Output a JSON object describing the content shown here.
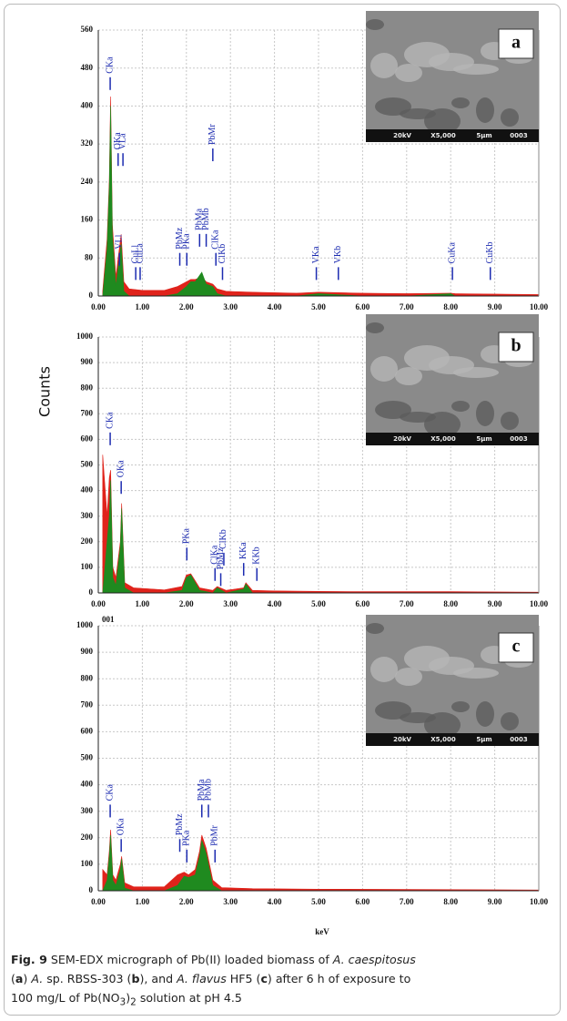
{
  "figure": {
    "y_label": "Counts",
    "x_label": "keV"
  },
  "chart_data": [
    {
      "type": "area",
      "panel_label": "a",
      "x": [
        0.1,
        0.2,
        0.25,
        0.28,
        0.32,
        0.4,
        0.45,
        0.52,
        0.58,
        0.7,
        1.0,
        1.5,
        1.8,
        2.0,
        2.1,
        2.2,
        2.35,
        2.45,
        2.6,
        2.7,
        2.9,
        3.5,
        4.5,
        5.0,
        6,
        7,
        8,
        8.1,
        9,
        10
      ],
      "series": [
        {
          "color": "#e0231b",
          "values": [
            10,
            120,
            245,
            420,
            150,
            40,
            80,
            130,
            30,
            15,
            12,
            12,
            20,
            30,
            35,
            35,
            40,
            30,
            25,
            15,
            10,
            8,
            6,
            8,
            6,
            5,
            6,
            5,
            4,
            3
          ]
        },
        {
          "color": "#1f8a1f",
          "values": [
            0,
            100,
            230,
            400,
            130,
            20,
            60,
            110,
            10,
            0,
            0,
            0,
            5,
            20,
            30,
            30,
            50,
            25,
            20,
            5,
            0,
            0,
            0,
            5,
            0,
            0,
            5,
            0,
            0,
            0
          ]
        }
      ],
      "xlim": [
        0,
        10
      ],
      "xticks": [
        {
          "value": 0,
          "label": "0.00"
        },
        {
          "value": 1,
          "label": "1.00"
        },
        {
          "value": 2,
          "label": "2.00"
        },
        {
          "value": 3,
          "label": "3.00"
        },
        {
          "value": 4,
          "label": "4.00"
        },
        {
          "value": 5,
          "label": "5.00"
        },
        {
          "value": 6,
          "label": "6.00"
        },
        {
          "value": 7,
          "label": "7.00"
        },
        {
          "value": 8,
          "label": "8.00"
        },
        {
          "value": 9,
          "label": "9.00"
        },
        {
          "value": 10,
          "label": "10.00"
        }
      ],
      "ylim": [
        0,
        560
      ],
      "yticks": [
        0,
        80,
        160,
        240,
        320,
        400,
        480,
        560
      ],
      "grid": true,
      "annotations": [
        {
          "label": "CKa",
          "x": 0.27,
          "y": 430
        },
        {
          "label": "OKa",
          "x": 0.45,
          "y": 270
        },
        {
          "label": "VLa",
          "x": 0.56,
          "y": 270
        },
        {
          "label": "VLl",
          "x": 0.48,
          "y": 60
        },
        {
          "label": "CuLl",
          "x": 0.85,
          "y": 30
        },
        {
          "label": "CuLa",
          "x": 0.95,
          "y": 30
        },
        {
          "label": "PbMz",
          "x": 1.85,
          "y": 60
        },
        {
          "label": "PKa",
          "x": 2.01,
          "y": 60
        },
        {
          "label": "PbMa",
          "x": 2.3,
          "y": 100
        },
        {
          "label": "PbMb",
          "x": 2.45,
          "y": 100
        },
        {
          "label": "PbMr",
          "x": 2.6,
          "y": 280
        },
        {
          "label": "ClKa",
          "x": 2.67,
          "y": 60
        },
        {
          "label": "ClKb",
          "x": 2.82,
          "y": 30
        },
        {
          "label": "VKa",
          "x": 4.95,
          "y": 30
        },
        {
          "label": "VKb",
          "x": 5.45,
          "y": 30
        },
        {
          "label": "CuKa",
          "x": 8.04,
          "y": 30
        },
        {
          "label": "CuKb",
          "x": 8.9,
          "y": 30
        }
      ],
      "inset": [
        "20kV",
        "X5,000",
        "5µm",
        "0003"
      ]
    },
    {
      "type": "area",
      "panel_label": "b",
      "x": [
        0.1,
        0.2,
        0.25,
        0.28,
        0.33,
        0.4,
        0.5,
        0.53,
        0.6,
        0.8,
        1.5,
        1.9,
        2.0,
        2.1,
        2.3,
        2.6,
        2.7,
        2.9,
        3.3,
        3.35,
        3.5,
        4,
        5,
        6,
        7,
        8,
        9,
        10
      ],
      "series": [
        {
          "color": "#e0231b",
          "values": [
            540,
            300,
            450,
            480,
            100,
            60,
            200,
            350,
            40,
            20,
            12,
            25,
            70,
            75,
            20,
            10,
            25,
            10,
            20,
            40,
            10,
            8,
            6,
            5,
            5,
            5,
            4,
            3
          ]
        },
        {
          "color": "#1f8a1f",
          "values": [
            0,
            200,
            300,
            440,
            60,
            30,
            180,
            330,
            20,
            0,
            0,
            10,
            60,
            70,
            10,
            0,
            20,
            0,
            15,
            35,
            0,
            0,
            0,
            0,
            0,
            0,
            0,
            0
          ]
        }
      ],
      "xlim": [
        0,
        10
      ],
      "xticks": [
        {
          "value": 0,
          "label": "0.00"
        },
        {
          "value": 1,
          "label": "1.00"
        },
        {
          "value": 2,
          "label": "2.00"
        },
        {
          "value": 3,
          "label": "3.00"
        },
        {
          "value": 4,
          "label": "4.00"
        },
        {
          "value": 5,
          "label": "5.00"
        },
        {
          "value": 6,
          "label": "6.00"
        },
        {
          "value": 7,
          "label": "7.00"
        },
        {
          "value": 8,
          "label": "8.00"
        },
        {
          "value": 9,
          "label": "9.00"
        },
        {
          "value": 10,
          "label": "10.00"
        }
      ],
      "ylim": [
        0,
        1000
      ],
      "yticks": [
        0,
        100,
        200,
        300,
        400,
        500,
        600,
        700,
        800,
        900,
        1000
      ],
      "grid": true,
      "annotations": [
        {
          "label": "CKa",
          "x": 0.27,
          "y": 570
        },
        {
          "label": "OKa",
          "x": 0.52,
          "y": 380
        },
        {
          "label": "PKa",
          "x": 2.01,
          "y": 120
        },
        {
          "label": "ClKa",
          "x": 2.65,
          "y": 40
        },
        {
          "label": "PbMz",
          "x": 2.78,
          "y": 20
        },
        {
          "label": "ClKb",
          "x": 2.85,
          "y": 100
        },
        {
          "label": "KKa",
          "x": 3.3,
          "y": 60
        },
        {
          "label": "KKb",
          "x": 3.6,
          "y": 40
        }
      ],
      "inset": [
        "20kV",
        "X5,000",
        "5µm",
        "0003"
      ]
    },
    {
      "type": "area",
      "panel_label": "c",
      "corner_note": "001",
      "x": [
        0.1,
        0.2,
        0.25,
        0.28,
        0.33,
        0.4,
        0.5,
        0.53,
        0.6,
        0.8,
        1.5,
        1.8,
        1.95,
        2.05,
        2.2,
        2.3,
        2.35,
        2.45,
        2.6,
        2.8,
        3.5,
        5,
        7,
        10
      ],
      "series": [
        {
          "color": "#e0231b",
          "values": [
            80,
            60,
            150,
            230,
            60,
            40,
            100,
            130,
            30,
            15,
            15,
            60,
            70,
            60,
            80,
            150,
            210,
            160,
            40,
            12,
            8,
            6,
            5,
            3
          ]
        },
        {
          "color": "#1f8a1f",
          "values": [
            0,
            40,
            130,
            210,
            40,
            20,
            80,
            120,
            10,
            0,
            0,
            20,
            55,
            50,
            60,
            130,
            190,
            140,
            20,
            0,
            0,
            0,
            0,
            0
          ]
        }
      ],
      "xlim": [
        0,
        10
      ],
      "xticks": [
        {
          "value": 0,
          "label": "0.00"
        },
        {
          "value": 1,
          "label": "1.00"
        },
        {
          "value": 2,
          "label": "2.00"
        },
        {
          "value": 3,
          "label": "3.00"
        },
        {
          "value": 4,
          "label": "4.00"
        },
        {
          "value": 5,
          "label": "5.00"
        },
        {
          "value": 6,
          "label": "6.00"
        },
        {
          "value": 7,
          "label": "7.00"
        },
        {
          "value": 8,
          "label": "8.00"
        },
        {
          "value": 9,
          "label": "9.00"
        },
        {
          "value": 10,
          "label": "10.00"
        }
      ],
      "ylim": [
        0,
        1000
      ],
      "yticks": [
        0,
        100,
        200,
        300,
        400,
        500,
        600,
        700,
        800,
        900,
        1000
      ],
      "grid": true,
      "annotations": [
        {
          "label": "CKa",
          "x": 0.27,
          "y": 270
        },
        {
          "label": "OKa",
          "x": 0.52,
          "y": 140
        },
        {
          "label": "PbMz",
          "x": 1.85,
          "y": 140
        },
        {
          "label": "PKa",
          "x": 2.01,
          "y": 100
        },
        {
          "label": "PbMa",
          "x": 2.35,
          "y": 270
        },
        {
          "label": "PbMb",
          "x": 2.5,
          "y": 270
        },
        {
          "label": "PbMr",
          "x": 2.65,
          "y": 100
        }
      ],
      "inset": [
        "20kV",
        "X5,000",
        "5µm",
        "0003"
      ]
    }
  ],
  "caption": [
    "Fig. 9",
    " SEM-EDX micrograph of Pb(II) loaded biomass of ",
    "A. caespitosus",
    "(",
    "a",
    ") ",
    "A.",
    " sp. RBSS-303 (",
    "b",
    "), and ",
    "A. flavus",
    " HF5 (",
    "c",
    ") after 6 h of exposure to",
    "100 mg/L of Pb(NO",
    "3",
    ")",
    "2",
    " solution at pH 4.5"
  ]
}
